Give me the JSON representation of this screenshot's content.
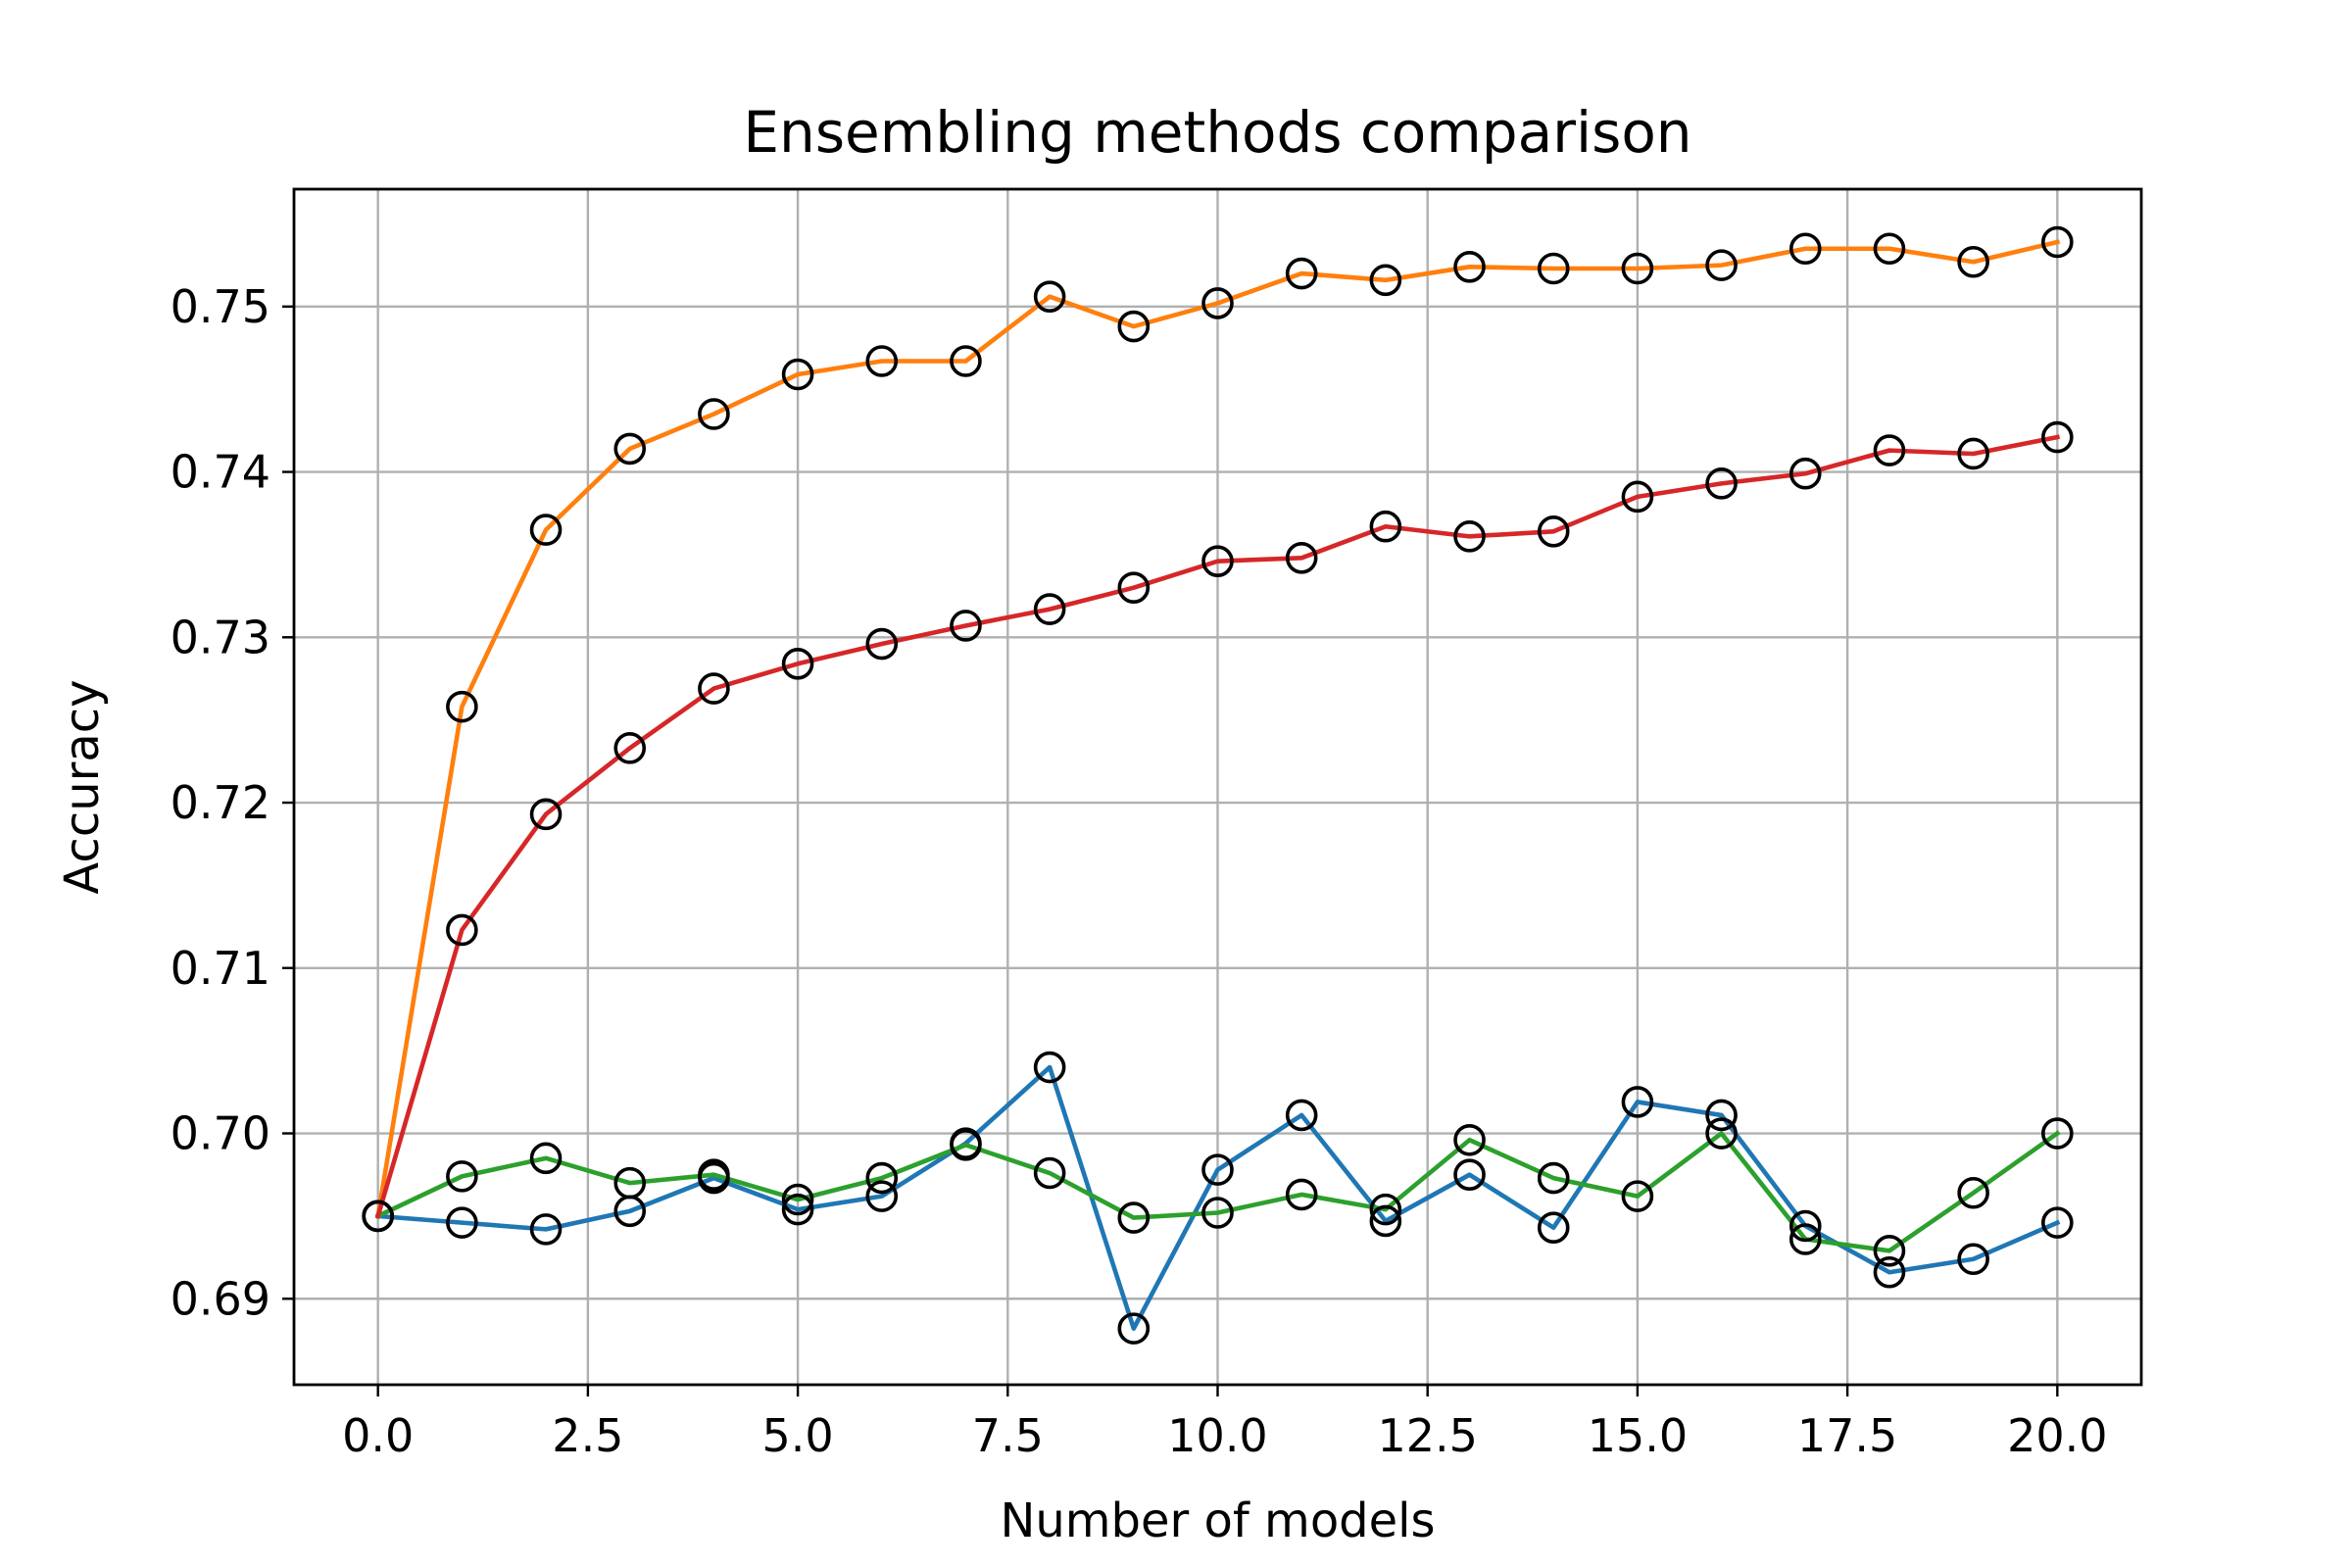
{
  "chart_data": {
    "type": "line",
    "title": "Ensembling methods comparison",
    "xlabel": "Number of models",
    "ylabel": "Accuracy",
    "xlim": [
      -1.0,
      21.0
    ],
    "ylim": [
      0.6848,
      0.7571
    ],
    "xticks": [
      0.0,
      2.5,
      5.0,
      7.5,
      10.0,
      12.5,
      15.0,
      17.5,
      20.0
    ],
    "xtick_labels": [
      "0.0",
      "2.5",
      "5.0",
      "7.5",
      "10.0",
      "12.5",
      "15.0",
      "17.5",
      "20.0"
    ],
    "yticks": [
      0.69,
      0.7,
      0.71,
      0.72,
      0.73,
      0.74,
      0.75
    ],
    "ytick_labels": [
      "0.69",
      "0.70",
      "0.71",
      "0.72",
      "0.73",
      "0.74",
      "0.75"
    ],
    "grid": true,
    "markers": "open circles",
    "x": [
      0,
      1,
      2,
      3,
      4,
      5,
      6,
      7,
      8,
      9,
      10,
      11,
      12,
      13,
      14,
      15,
      16,
      17,
      18,
      19,
      20
    ],
    "series": [
      {
        "color": "#1f77b4",
        "values": [
          0.695,
          0.6946,
          0.6942,
          0.6953,
          0.6973,
          0.6954,
          0.6962,
          0.6994,
          0.704,
          0.6882,
          0.6978,
          0.7011,
          0.6947,
          0.6975,
          0.6943,
          0.7019,
          0.7011,
          0.6944,
          0.6916,
          0.6924,
          0.6946
        ]
      },
      {
        "color": "#ff7f0e",
        "values": [
          0.695,
          0.7258,
          0.7365,
          0.7414,
          0.7435,
          0.7459,
          0.7467,
          0.7467,
          0.7506,
          0.7488,
          0.7502,
          0.752,
          0.7516,
          0.7524,
          0.7523,
          0.7523,
          0.7525,
          0.7535,
          0.7535,
          0.7527,
          0.7539
        ]
      },
      {
        "color": "#2ca02c",
        "values": [
          0.695,
          0.6974,
          0.6985,
          0.697,
          0.6975,
          0.696,
          0.6973,
          0.6993,
          0.6976,
          0.6949,
          0.6952,
          0.6963,
          0.6954,
          0.6996,
          0.6973,
          0.6962,
          0.7,
          0.6936,
          0.6929,
          0.6964,
          0.7
        ]
      },
      {
        "color": "#d62728",
        "values": [
          0.695,
          0.7123,
          0.7193,
          0.7233,
          0.7269,
          0.7284,
          0.7296,
          0.7307,
          0.7317,
          0.733,
          0.7346,
          0.7348,
          0.7367,
          0.7361,
          0.7364,
          0.7385,
          0.7393,
          0.7399,
          0.7413,
          0.7411,
          0.7421
        ]
      }
    ]
  }
}
